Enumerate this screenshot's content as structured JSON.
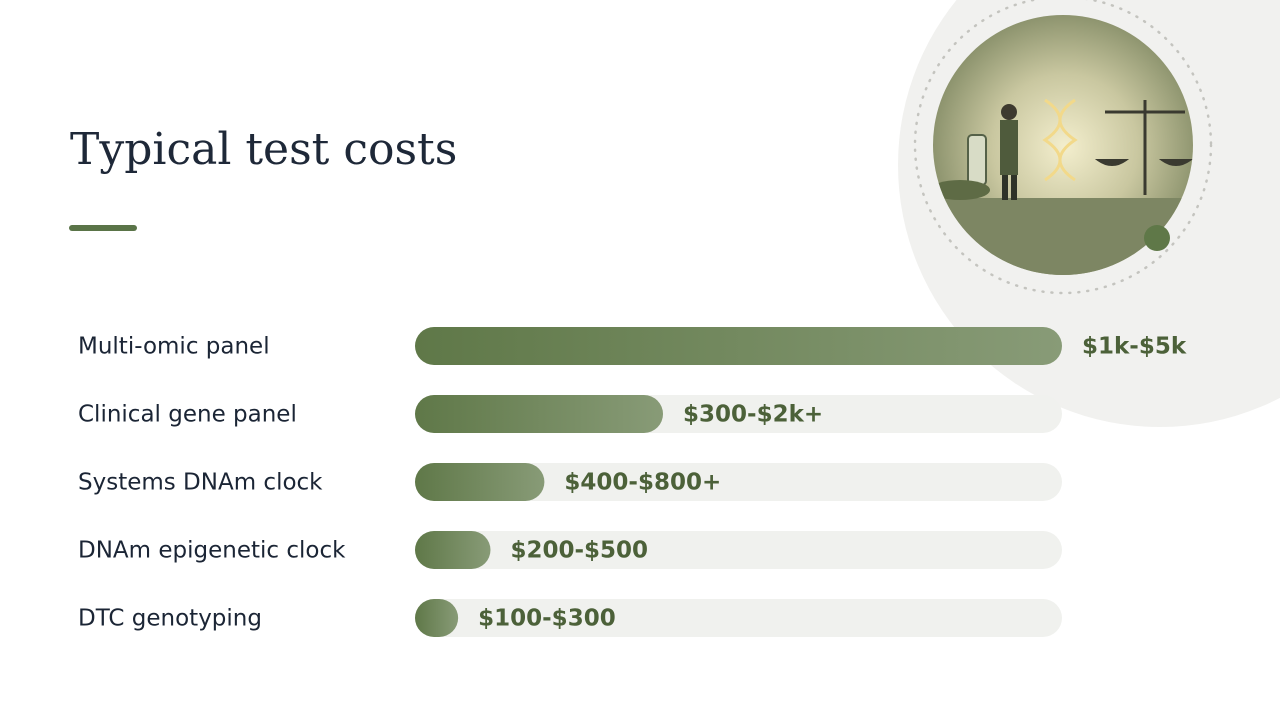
{
  "chart_data": {
    "type": "bar",
    "orientation": "horizontal",
    "title": "Typical test costs",
    "categories": [
      "Multi-omic panel",
      "Clinical gene panel",
      "Systems DNAm clock",
      "DNAm epigenetic clock",
      "DTC genotyping"
    ],
    "values": [
      3000,
      1150,
      600,
      350,
      200
    ],
    "value_labels": [
      "$1k-$5k",
      "$300-$2k+",
      "$400-$800+",
      "$200-$500",
      "$100-$300"
    ],
    "xlim": [
      0,
      3000
    ],
    "color": "#627a4b"
  }
}
